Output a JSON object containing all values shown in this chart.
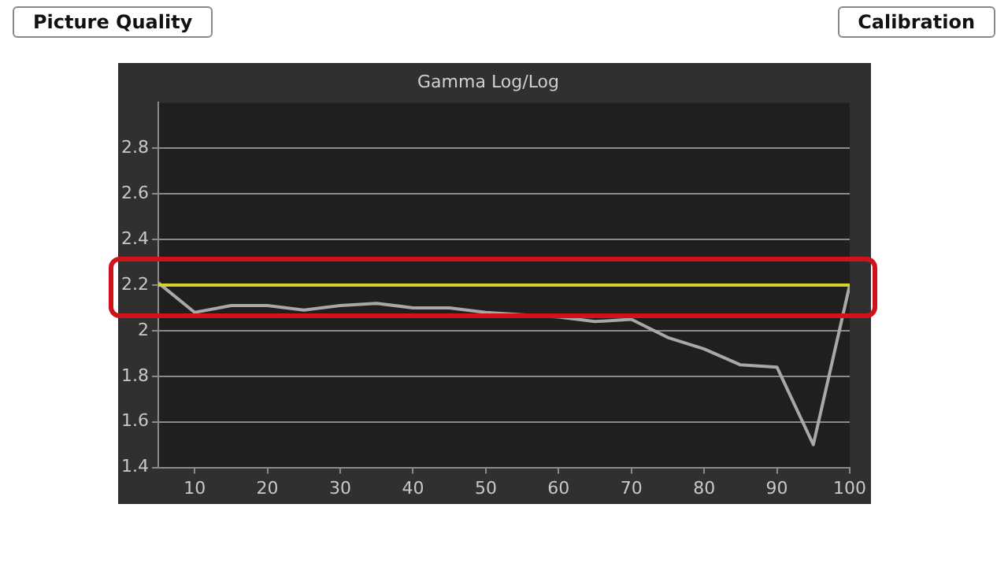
{
  "chart_data": {
    "type": "line",
    "title": "Gamma Log/Log",
    "x": [
      5,
      10,
      15,
      20,
      25,
      30,
      35,
      40,
      45,
      50,
      55,
      60,
      65,
      70,
      75,
      80,
      85,
      90,
      95,
      100
    ],
    "series": [
      {
        "color": "#a8a8a8",
        "values": [
          2.21,
          2.08,
          2.11,
          2.11,
          2.09,
          2.11,
          2.12,
          2.1,
          2.1,
          2.08,
          2.07,
          2.06,
          2.04,
          2.05,
          1.97,
          1.92,
          1.85,
          1.84,
          1.5,
          2.2
        ]
      }
    ],
    "xlim": [
      5,
      100
    ],
    "xticks": [
      10,
      20,
      30,
      40,
      50,
      60,
      70,
      80,
      90,
      100
    ],
    "ylim": [
      1.4,
      3.0
    ],
    "yticks": [
      1.4,
      1.6,
      1.8,
      2,
      2.2,
      2.4,
      2.6,
      2.8
    ],
    "ref_lines": [
      {
        "axis": "y",
        "value": 2.2,
        "color": "#d4d42a"
      }
    ],
    "grid": "y",
    "legend": false,
    "marker": "none",
    "line_style": "solid",
    "annotations": [
      "Picture Quality",
      "Calibration"
    ]
  }
}
